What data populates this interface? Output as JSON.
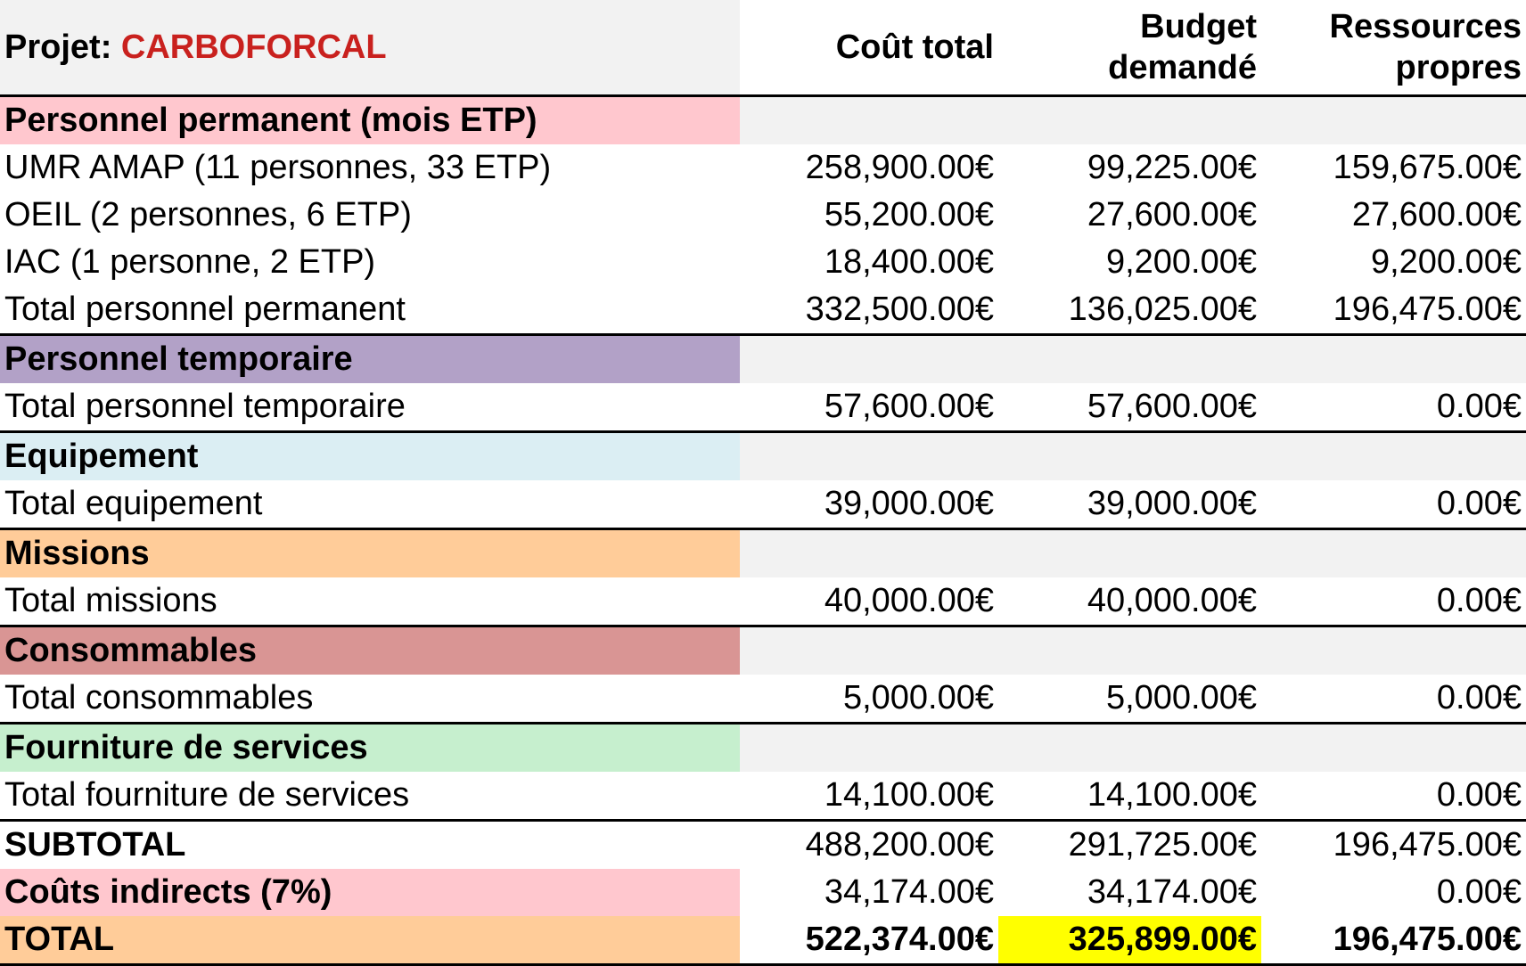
{
  "header": {
    "project_prefix": "Projet: ",
    "project_name": "CARBOFORCAL",
    "col_total_cost": "Coût total",
    "col_requested_line1": "Budget",
    "col_requested_line2": "demandé",
    "col_own_line1": "Ressources",
    "col_own_line2": "propres"
  },
  "colors": {
    "personnel_permanent": "#ffc7ce",
    "personnel_temporaire": "#b2a1c7",
    "equipement": "#dbeef3",
    "missions": "#ffcc99",
    "consommables": "#d99594",
    "fourniture": "#c6efce",
    "couts_indirects": "#ffc7ce",
    "total": "#ffcc99",
    "highlight": "#ffff00",
    "project_name": "#c9211e"
  },
  "sections": {
    "permanent": {
      "title": "Personnel permanent (mois ETP)",
      "rows": [
        {
          "label": "UMR AMAP (11 personnes, 33 ETP)",
          "total": "258,900.00€",
          "requested": "99,225.00€",
          "own": "159,675.00€"
        },
        {
          "label": "OEIL (2 personnes, 6 ETP)",
          "total": "55,200.00€",
          "requested": "27,600.00€",
          "own": "27,600.00€"
        },
        {
          "label": "IAC (1 personne, 2 ETP)",
          "total": "18,400.00€",
          "requested": "9,200.00€",
          "own": "9,200.00€"
        },
        {
          "label": "Total personnel permanent",
          "total": "332,500.00€",
          "requested": "136,025.00€",
          "own": "196,475.00€"
        }
      ]
    },
    "temporaire": {
      "title": "Personnel temporaire",
      "rows": [
        {
          "label": "Total personnel temporaire",
          "total": "57,600.00€",
          "requested": "57,600.00€",
          "own": "0.00€"
        }
      ]
    },
    "equipement": {
      "title": "Equipement",
      "rows": [
        {
          "label": "Total equipement",
          "total": "39,000.00€",
          "requested": "39,000.00€",
          "own": "0.00€"
        }
      ]
    },
    "missions": {
      "title": "Missions",
      "rows": [
        {
          "label": "Total missions",
          "total": "40,000.00€",
          "requested": "40,000.00€",
          "own": "0.00€"
        }
      ]
    },
    "consommables": {
      "title": "Consommables",
      "rows": [
        {
          "label": "Total consommables",
          "total": "5,000.00€",
          "requested": "5,000.00€",
          "own": "0.00€"
        }
      ]
    },
    "fourniture": {
      "title": "Fourniture de services",
      "rows": [
        {
          "label": "Total fourniture de services",
          "total": "14,100.00€",
          "requested": "14,100.00€",
          "own": "0.00€"
        }
      ]
    }
  },
  "subtotal": {
    "label": "SUBTOTAL",
    "total": "488,200.00€",
    "requested": "291,725.00€",
    "own": "196,475.00€"
  },
  "indirect": {
    "label": "Coûts indirects (7%)",
    "total": "34,174.00€",
    "requested": "34,174.00€",
    "own": "0.00€"
  },
  "grand_total": {
    "label": "TOTAL",
    "total": "522,374.00€",
    "requested": "325,899.00€",
    "own": "196,475.00€"
  }
}
